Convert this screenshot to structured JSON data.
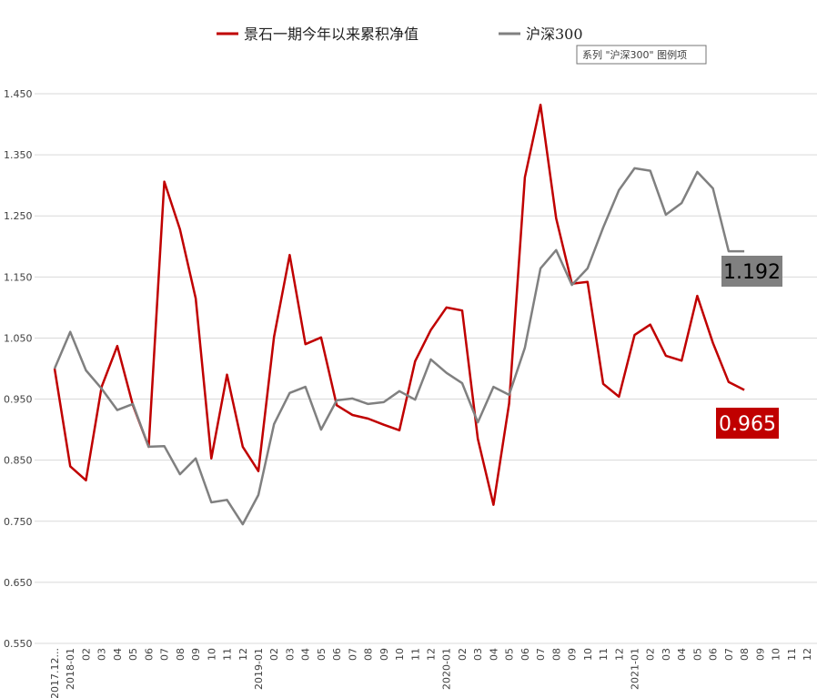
{
  "chart_data": {
    "type": "line",
    "categories": [
      "2017.12...",
      "2018-01",
      "02",
      "03",
      "04",
      "05",
      "06",
      "07",
      "08",
      "09",
      "10",
      "11",
      "12",
      "2019-01",
      "02",
      "03",
      "04",
      "05",
      "06",
      "07",
      "08",
      "09",
      "10",
      "11",
      "12",
      "2020-01",
      "02",
      "03",
      "04",
      "05",
      "06",
      "07",
      "08",
      "09",
      "10",
      "11",
      "12",
      "2021-01",
      "02",
      "03",
      "04",
      "05",
      "06",
      "07",
      "08",
      "09",
      "10",
      "11",
      "12"
    ],
    "series": [
      {
        "name": "景石一期今年以来累积净值",
        "color": "#c00000",
        "values": [
          1.0,
          0.84,
          0.817,
          0.97,
          1.037,
          0.94,
          0.872,
          1.306,
          1.228,
          1.115,
          0.853,
          0.99,
          0.872,
          0.832,
          1.052,
          1.186,
          1.04,
          1.051,
          0.94,
          0.924,
          0.918,
          0.908,
          0.899,
          1.012,
          1.063,
          1.1,
          1.095,
          0.885,
          0.777,
          0.943,
          1.313,
          1.432,
          1.246,
          1.139,
          1.142,
          0.975,
          0.954,
          1.055,
          1.072,
          1.021,
          1.013,
          1.119,
          1.042,
          0.978,
          0.965,
          null,
          null,
          null,
          null
        ]
      },
      {
        "name": "沪深300",
        "color": "#808080",
        "values": [
          1.0,
          1.06,
          0.997,
          0.967,
          0.932,
          0.942,
          0.872,
          0.873,
          0.827,
          0.853,
          0.781,
          0.785,
          0.745,
          0.793,
          0.909,
          0.96,
          0.97,
          0.9,
          0.948,
          0.951,
          0.942,
          0.945,
          0.963,
          0.949,
          1.015,
          0.993,
          0.976,
          0.912,
          0.97,
          0.957,
          1.034,
          1.164,
          1.194,
          1.137,
          1.164,
          1.231,
          1.292,
          1.328,
          1.324,
          1.252,
          1.271,
          1.322,
          1.295,
          1.192,
          1.192,
          null,
          null,
          null,
          null
        ]
      }
    ],
    "ylim": [
      0.55,
      1.45
    ],
    "yticks": [
      {
        "value": 0.55,
        "label": "0.550"
      },
      {
        "value": 0.65,
        "label": "0.650"
      },
      {
        "value": 0.75,
        "label": "0.750"
      },
      {
        "value": 0.85,
        "label": "0.850"
      },
      {
        "value": 0.95,
        "label": "0.950"
      },
      {
        "value": 1.05,
        "label": "1.050"
      },
      {
        "value": 1.15,
        "label": "1.150"
      },
      {
        "value": 1.25,
        "label": "1.250"
      },
      {
        "value": 1.35,
        "label": "1.350"
      },
      {
        "value": 1.45,
        "label": "1.450"
      }
    ],
    "grid": true,
    "legend": "top",
    "annotations": [
      {
        "text": "1.192",
        "color": "#808080"
      },
      {
        "text": "0.965",
        "color": "#c00000"
      }
    ],
    "tooltip": "系列 \"沪深300\" 图例项"
  }
}
